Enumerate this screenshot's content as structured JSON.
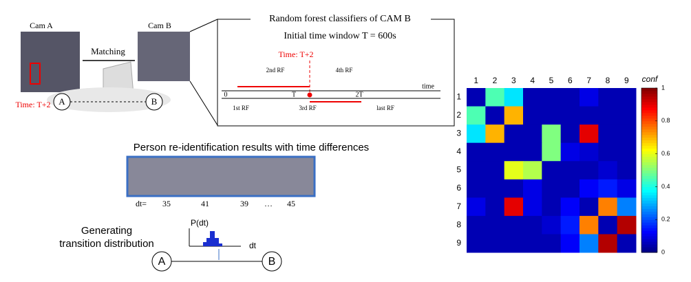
{
  "diagram": {
    "cam_a": "Cam A",
    "cam_b": "Cam B",
    "matching": "Matching",
    "time_left": "Time: T+2",
    "node_a": "A",
    "node_b": "B",
    "rf_title": "Random forest classifiers of CAM B",
    "rf_window": "Initial time window T = 600s",
    "rf_time": "Time: T+2",
    "rf_labels": [
      "2nd RF",
      "4th RF",
      "1st RF",
      "3rd RF",
      "last RF"
    ],
    "axis_labels": [
      "0",
      "T",
      "2T",
      "time"
    ],
    "reid_title": "Person re-identification results with time differences",
    "dt_prefix": "dt=",
    "dt_values": [
      35,
      41,
      39,
      "…",
      45
    ],
    "gen_lines": [
      "Generating",
      "transition distribution"
    ],
    "pdt": "P(dt)",
    "dt": "dt",
    "bottom_a": "A",
    "bottom_b": "B"
  },
  "chart_data": {
    "type": "heatmap",
    "x": [
      "1",
      "2",
      "3",
      "4",
      "5",
      "6",
      "7",
      "8",
      "9"
    ],
    "y": [
      "1",
      "2",
      "3",
      "4",
      "5",
      "6",
      "7",
      "8",
      "9"
    ],
    "z": [
      [
        0.05,
        0.45,
        0.35,
        0.05,
        0.05,
        0.05,
        0.1,
        0.05,
        0.05
      ],
      [
        0.45,
        0.05,
        0.7,
        0.05,
        0.05,
        0.05,
        0.05,
        0.05,
        0.05
      ],
      [
        0.35,
        0.7,
        0.05,
        0.05,
        0.5,
        0.05,
        0.9,
        0.05,
        0.05
      ],
      [
        0.05,
        0.05,
        0.05,
        0.05,
        0.5,
        0.1,
        0.08,
        0.05,
        0.05
      ],
      [
        0.05,
        0.05,
        0.6,
        0.55,
        0.05,
        0.05,
        0.05,
        0.08,
        0.05
      ],
      [
        0.05,
        0.05,
        0.05,
        0.1,
        0.05,
        0.05,
        0.12,
        0.15,
        0.1
      ],
      [
        0.1,
        0.05,
        0.9,
        0.1,
        0.05,
        0.12,
        0.05,
        0.75,
        0.25
      ],
      [
        0.05,
        0.05,
        0.05,
        0.05,
        0.08,
        0.15,
        0.75,
        0.05,
        0.95
      ],
      [
        0.05,
        0.05,
        0.05,
        0.05,
        0.05,
        0.12,
        0.25,
        0.95,
        0.05
      ]
    ],
    "colormap": "jet",
    "colorbar_label": "conf",
    "zlim": [
      0,
      1
    ],
    "zticks": [
      0,
      0.2,
      0.4,
      0.6,
      0.8,
      1
    ]
  }
}
